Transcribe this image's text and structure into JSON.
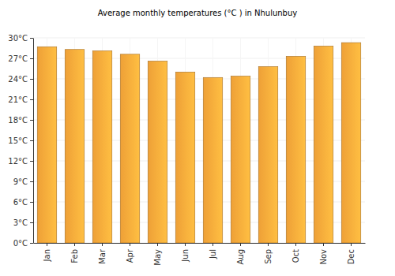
{
  "chart_data": {
    "type": "bar",
    "title": "Average monthly temperatures (°C ) in Nhulunbuy",
    "categories": [
      "Jan",
      "Feb",
      "Mar",
      "Apr",
      "May",
      "Jun",
      "Jul",
      "Aug",
      "Sep",
      "Oct",
      "Nov",
      "Dec"
    ],
    "values": [
      28.7,
      28.3,
      28.1,
      27.6,
      26.6,
      25.0,
      24.2,
      24.4,
      25.8,
      27.3,
      28.8,
      29.3
    ],
    "color": "#fba93a",
    "ylim": [
      0,
      30
    ],
    "yticks": [
      {
        "value": 0,
        "label": "0°C"
      },
      {
        "value": 3,
        "label": "3°C"
      },
      {
        "value": 6,
        "label": "6°C"
      },
      {
        "value": 9,
        "label": "9°C"
      },
      {
        "value": 12,
        "label": "12°C"
      },
      {
        "value": 15,
        "label": "15°C"
      },
      {
        "value": 18,
        "label": "18°C"
      },
      {
        "value": 21,
        "label": "21°C"
      },
      {
        "value": 24,
        "label": "24°C"
      },
      {
        "value": 27,
        "label": "27°C"
      },
      {
        "value": 30,
        "label": "30°C"
      }
    ],
    "grid": true
  }
}
